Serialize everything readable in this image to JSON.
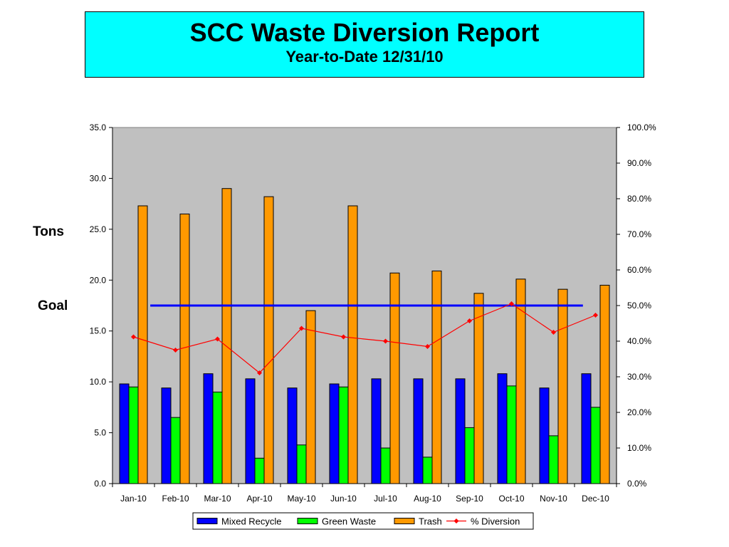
{
  "header": {
    "title": "SCC Waste Diversion Report",
    "subtitle": "Year-to-Date 12/31/10"
  },
  "labels": {
    "tons": "Tons",
    "goal": "Goal"
  },
  "colors": {
    "header_bg": "#00ffff",
    "plot_bg": "#c0c0c0",
    "mixed_recycle": "#0000ff",
    "green_waste": "#00ff00",
    "trash": "#ff9900",
    "diversion": "#ff0000",
    "goal_line": "#0000ff"
  },
  "chart_data": {
    "type": "bar",
    "categories": [
      "Jan-10",
      "Feb-10",
      "Mar-10",
      "Apr-10",
      "May-10",
      "Jun-10",
      "Jul-10",
      "Aug-10",
      "Sep-10",
      "Oct-10",
      "Nov-10",
      "Dec-10"
    ],
    "series": [
      {
        "name": "Mixed Recycle",
        "kind": "bar",
        "axis": "left",
        "values": [
          9.8,
          9.4,
          10.8,
          10.3,
          9.4,
          9.8,
          10.3,
          10.3,
          10.3,
          10.8,
          9.4,
          10.8
        ]
      },
      {
        "name": "Green Waste",
        "kind": "bar",
        "axis": "left",
        "values": [
          9.5,
          6.5,
          9.0,
          2.5,
          3.8,
          9.5,
          3.5,
          2.6,
          5.5,
          9.6,
          4.7,
          7.5
        ]
      },
      {
        "name": "Trash",
        "kind": "bar",
        "axis": "left",
        "values": [
          27.3,
          26.5,
          29.0,
          28.2,
          17.0,
          27.3,
          20.7,
          20.9,
          18.7,
          20.1,
          19.1,
          19.5
        ]
      },
      {
        "name": "% Diversion",
        "kind": "line",
        "axis": "right",
        "values": [
          41.2,
          37.5,
          40.6,
          31.1,
          43.6,
          41.2,
          40.0,
          38.5,
          45.7,
          50.5,
          42.5,
          47.3
        ]
      }
    ],
    "goal": {
      "value": 50.0,
      "axis": "right"
    },
    "ylim_left": [
      0,
      35
    ],
    "ylim_right": [
      0,
      100
    ],
    "yticks_left": [
      "0.0",
      "5.0",
      "10.0",
      "15.0",
      "20.0",
      "25.0",
      "30.0",
      "35.0"
    ],
    "yticks_right": [
      "0.0%",
      "10.0%",
      "20.0%",
      "30.0%",
      "40.0%",
      "50.0%",
      "60.0%",
      "70.0%",
      "80.0%",
      "90.0%",
      "100.0%"
    ],
    "legend_position": "bottom",
    "grid": false
  }
}
